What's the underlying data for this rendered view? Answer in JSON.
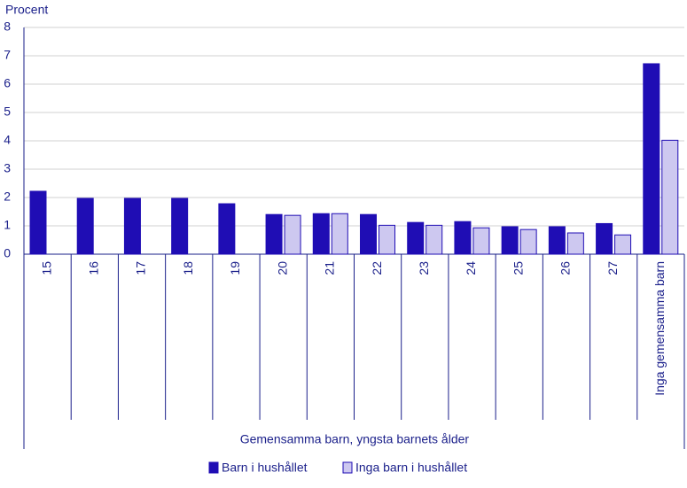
{
  "chart_data": {
    "type": "bar",
    "y_label": "Procent",
    "x_group_label": "Gemensamma barn, yngsta barnets ålder",
    "categories": [
      "15",
      "16",
      "17",
      "18",
      "19",
      "20",
      "21",
      "22",
      "23",
      "24",
      "25",
      "26",
      "27",
      "Inga gemensamma barn"
    ],
    "series": [
      {
        "name": "Barn i hushållet",
        "color": "#1f0db4",
        "values": [
          2.22,
          1.97,
          1.97,
          1.97,
          1.78,
          1.4,
          1.43,
          1.4,
          1.12,
          1.15,
          0.97,
          0.97,
          1.08,
          6.72
        ]
      },
      {
        "name": "Inga barn i hushållet",
        "color": "#cdc8f0",
        "values": [
          null,
          null,
          null,
          null,
          null,
          1.37,
          1.43,
          1.02,
          1.02,
          0.93,
          0.87,
          0.75,
          0.68,
          4.02
        ]
      }
    ],
    "ylim": [
      0,
      8
    ],
    "yticks": [
      0,
      1,
      2,
      3,
      4,
      5,
      6,
      7,
      8
    ],
    "grid": true
  }
}
